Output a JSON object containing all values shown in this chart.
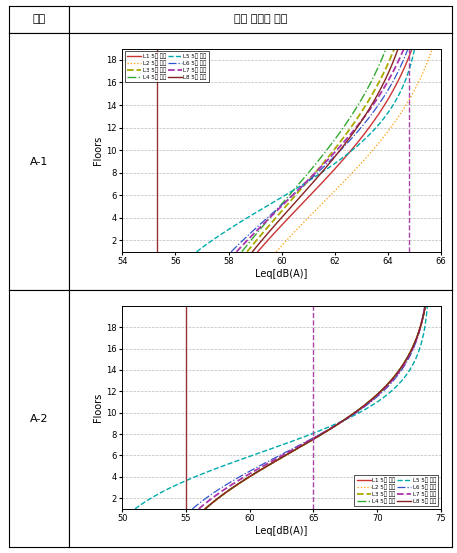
{
  "title_col1": "순번",
  "title_col2": "층별 소음도 추이",
  "row1_label": "A-1",
  "row2_label": "A-2",
  "plot1": {
    "xlim": [
      54,
      66
    ],
    "ylim": [
      1,
      19
    ],
    "xticks": [
      54,
      56,
      58,
      60,
      62,
      64,
      66
    ],
    "yticks": [
      2,
      4,
      6,
      8,
      10,
      12,
      14,
      16,
      18
    ],
    "xlabel": "Leq[dB(A)]",
    "ylabel": "Floors",
    "vline_red": 55.3,
    "vline_purple": 64.8,
    "curves": [
      {
        "color": "#cc3333",
        "lw": 1.0,
        "ls": "solid",
        "x_low": 59.1,
        "x_high": 64.2,
        "floor_low": 1,
        "floor_high": 15.3,
        "steepness": 0.45
      },
      {
        "color": "#ff9900",
        "lw": 0.9,
        "ls": "dotted",
        "x_low": 59.8,
        "x_high": 65.0,
        "floor_low": 1,
        "floor_high": 15.3,
        "steepness": 0.42
      },
      {
        "color": "#aaaa00",
        "lw": 1.3,
        "ls": "dashed",
        "x_low": 58.7,
        "x_high": 63.5,
        "floor_low": 1,
        "floor_high": 15.3,
        "steepness": 0.5
      },
      {
        "color": "#33aa33",
        "lw": 1.0,
        "ls": "dashdot",
        "x_low": 58.5,
        "x_high": 63.2,
        "floor_low": 1,
        "floor_high": 15.3,
        "steepness": 0.5
      },
      {
        "color": "#00aaaa",
        "lw": 1.0,
        "ls": "dashed",
        "x_low": 56.8,
        "x_high": 64.5,
        "floor_low": 1,
        "floor_high": 15.3,
        "steepness": 0.28
      },
      {
        "color": "#3355cc",
        "lw": 0.9,
        "ls": "dashdot",
        "x_low": 58.1,
        "x_high": 64.0,
        "floor_low": 1,
        "floor_high": 15.3,
        "steepness": 0.42
      },
      {
        "color": "#aa33aa",
        "lw": 1.3,
        "ls": "dashed",
        "x_low": 58.3,
        "x_high": 63.8,
        "floor_low": 1,
        "floor_high": 15.3,
        "steepness": 0.47
      },
      {
        "color": "#882222",
        "lw": 1.0,
        "ls": "solid",
        "x_low": 58.9,
        "x_high": 63.7,
        "floor_low": 1,
        "floor_high": 15.3,
        "steepness": 0.46
      }
    ],
    "legend_labels": [
      "L1 5층 이하",
      "L2 5층 이하",
      "L3 5층 이하",
      "L4 5층 이하",
      "L5 5층 이하",
      "L6 5층 이하",
      "L7 5층 이하",
      "L8 5층 이하"
    ]
  },
  "plot2": {
    "xlim": [
      50,
      75
    ],
    "ylim": [
      1,
      20
    ],
    "xticks": [
      50,
      55,
      60,
      65,
      70,
      75
    ],
    "yticks": [
      2,
      4,
      6,
      8,
      10,
      12,
      14,
      16,
      18
    ],
    "xlabel": "Leq[dB(A)]",
    "ylabel": "Floors",
    "vline_red": 55.0,
    "vline_purple": 65.0,
    "curves": [
      {
        "color": "#cc3333",
        "lw": 1.0,
        "ls": "solid",
        "x_low": 56.5,
        "x_high": 73.5,
        "floor_low": 1,
        "floor_high": 18.5,
        "steepness": 0.22
      },
      {
        "color": "#ff9900",
        "lw": 0.9,
        "ls": "dotted",
        "x_low": 56.5,
        "x_high": 73.5,
        "floor_low": 1,
        "floor_high": 18.5,
        "steepness": 0.22
      },
      {
        "color": "#aaaa00",
        "lw": 1.3,
        "ls": "dashed",
        "x_low": 56.5,
        "x_high": 73.5,
        "floor_low": 1,
        "floor_high": 18.5,
        "steepness": 0.22
      },
      {
        "color": "#33aa33",
        "lw": 1.0,
        "ls": "dashdot",
        "x_low": 56.5,
        "x_high": 73.5,
        "floor_low": 1,
        "floor_high": 18.5,
        "steepness": 0.22
      },
      {
        "color": "#00aaaa",
        "lw": 1.0,
        "ls": "dashed",
        "x_low": 51.0,
        "x_high": 73.8,
        "floor_low": 1,
        "floor_high": 18.5,
        "steepness": 0.16
      },
      {
        "color": "#3355cc",
        "lw": 0.9,
        "ls": "dashdot",
        "x_low": 55.5,
        "x_high": 73.5,
        "floor_low": 1,
        "floor_high": 18.5,
        "steepness": 0.2
      },
      {
        "color": "#aa33aa",
        "lw": 1.3,
        "ls": "dashed",
        "x_low": 56.0,
        "x_high": 73.5,
        "floor_low": 1,
        "floor_high": 18.5,
        "steepness": 0.21
      },
      {
        "color": "#882222",
        "lw": 1.0,
        "ls": "solid",
        "x_low": 56.5,
        "x_high": 73.5,
        "floor_low": 1,
        "floor_high": 18.5,
        "steepness": 0.22
      }
    ],
    "legend_labels": [
      "L1 5층 이하",
      "L2 5층 이하",
      "L3 5층 이하",
      "L4 5층 이하",
      "L5 5층 이하",
      "L6 5층 이하",
      "L7 5층 이하",
      "L8 5층 이하"
    ]
  }
}
